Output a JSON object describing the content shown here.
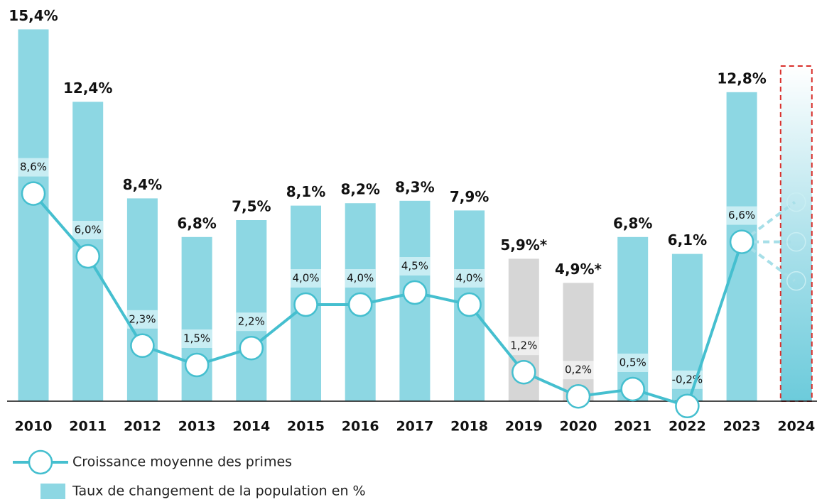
{
  "chart_data": {
    "type": "bar-line",
    "categories": [
      "2010",
      "2011",
      "2012",
      "2013",
      "2014",
      "2015",
      "2016",
      "2017",
      "2018",
      "2019",
      "2020",
      "2021",
      "2022",
      "2023",
      "2024"
    ],
    "ylim": [
      -0.5,
      16
    ],
    "series": [
      {
        "name": "Taux de changement de la population en %",
        "type": "bar",
        "color": "#8dd7e3",
        "colors": [
          "#8dd7e3",
          "#8dd7e3",
          "#8dd7e3",
          "#8dd7e3",
          "#8dd7e3",
          "#8dd7e3",
          "#8dd7e3",
          "#8dd7e3",
          "#8dd7e3",
          "#d6d6d6",
          "#d6d6d6",
          "#8dd7e3",
          "#8dd7e3",
          "#8dd7e3",
          "#8dd7e3"
        ],
        "values": [
          15.4,
          12.4,
          8.4,
          6.8,
          7.5,
          8.1,
          8.2,
          8.3,
          7.9,
          5.9,
          4.9,
          6.8,
          6.1,
          12.8,
          null
        ],
        "value_labels": [
          "15,4%",
          "12,4%",
          "8,4%",
          "6,8%",
          "7,5%",
          "8,1%",
          "8,2%",
          "8,3%",
          "7,9%",
          "5,9%*",
          "4,9%*",
          "6,8%",
          "6,1%",
          "12,8%",
          null
        ]
      },
      {
        "name": "Croissance moyenne des primes",
        "type": "line",
        "color": "#45bfcf",
        "values": [
          8.6,
          6.0,
          2.3,
          1.5,
          2.2,
          4.0,
          4.0,
          4.5,
          4.0,
          1.2,
          0.2,
          0.5,
          -0.2,
          6.6,
          null
        ],
        "value_labels": [
          "8,6%",
          "6,0%",
          "2,3%",
          "1,5%",
          "2,2%",
          "4,0%",
          "4,0%",
          "4,5%",
          "4,0%",
          "1,2%",
          "0,2%",
          "0,5%",
          "-0,2%",
          "6,6%",
          null
        ]
      }
    ]
  }
}
